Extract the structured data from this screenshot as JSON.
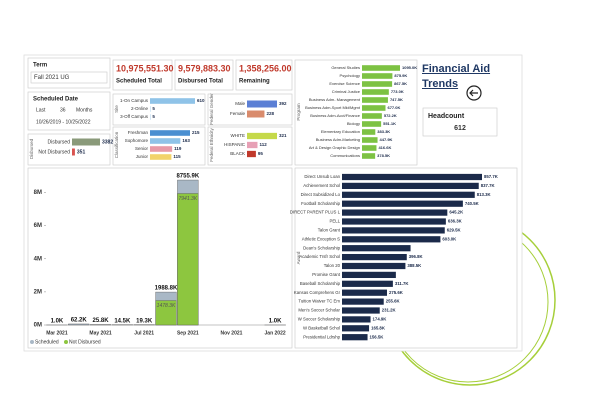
{
  "term": {
    "label": "Term",
    "value": "Fall 2021 UG"
  },
  "kpis": [
    {
      "value": "10,975,551.30",
      "label": "Scheduled Total"
    },
    {
      "value": "9,579,883.30",
      "label": "Disbursed Total"
    },
    {
      "value": "1,358,256.00",
      "label": "Remaining"
    }
  ],
  "scheduled_date": {
    "label": "Scheduled Date",
    "mode": "Last",
    "count": "36",
    "unit": "Months",
    "range": "10/26/2019 - 10/25/2022"
  },
  "trends": {
    "title": "Financial Aid Trends",
    "headcount_label": "Headcount",
    "headcount": "612"
  },
  "chart_data": [
    {
      "type": "hbar",
      "axis_label": "Disbursed",
      "categories": [
        "Disbursed",
        "Not Disbursed"
      ],
      "values": [
        3382,
        351
      ],
      "colors": [
        "#8a9a7a",
        "#d9534f"
      ]
    },
    {
      "type": "hbar",
      "axis_label": "Site",
      "categories": [
        "1-On Campus",
        "2-Online",
        "3-Off Campus"
      ],
      "values": [
        610,
        5,
        5
      ],
      "colors": [
        "#8fc3e8",
        "#8fc3e8",
        "#8fc3e8"
      ]
    },
    {
      "type": "hbar",
      "axis_label": "Classification",
      "categories": [
        "Freshman",
        "Sophomore",
        "Senior",
        "Junior"
      ],
      "values": [
        215,
        163,
        119,
        115
      ],
      "colors": [
        "#4a8fd1",
        "#8fc3e8",
        "#e79aa8",
        "#f2d36b"
      ]
    },
    {
      "type": "hbar",
      "axis_label": "Federal Gender",
      "categories": [
        "Male",
        "Female"
      ],
      "values": [
        392,
        228
      ],
      "colors": [
        "#5b7fd5",
        "#d98b6c"
      ]
    },
    {
      "type": "hbar",
      "axis_label": "Federal Ethnicity",
      "categories": [
        "WHITE",
        "HISPANIC",
        "BLACK"
      ],
      "values": [
        321,
        112,
        95
      ],
      "colors": [
        "#c5d94a",
        "#e7a0b5",
        "#c0392b"
      ]
    },
    {
      "type": "hbar",
      "axis_label": "Program",
      "categories": [
        "General Studies",
        "Psychology",
        "Exercise Science",
        "Criminal Justice",
        "Business Adm- Management",
        "Business Adm-Sport Mkt/Mgmt",
        "Business Adm-Acct/Finance",
        "Biology",
        "Elementary Education",
        "Business Adm-Marketing",
        "Art & Design Graphic Design",
        "Communications"
      ],
      "values": [
        1095.0,
        875.9,
        867.5,
        773.0,
        747.5,
        677.0,
        572.2,
        551.1,
        383.3,
        447.9,
        416.6,
        378.5
      ],
      "value_labels": [
        "1095.0K",
        "875.9K",
        "867.5K",
        "773.0K",
        "747.5K",
        "677.0K",
        "572.2K",
        "551.1K",
        "383.3K",
        "447.9K",
        "416.6K",
        "378.5K"
      ],
      "color": "#7dc243"
    },
    {
      "type": "bar",
      "categories": [
        "Mar 2021",
        null,
        "May 2021",
        null,
        "Jul 2021",
        null,
        "Sep 2021",
        null,
        "Nov 2021",
        null,
        "Jan 2022"
      ],
      "ylim": [
        0,
        9000000
      ],
      "yticks": [
        {
          "value": 0,
          "label": "0M"
        },
        {
          "value": 2000000,
          "label": "2M"
        },
        {
          "value": 4000000,
          "label": "4M"
        },
        {
          "value": 6000000,
          "label": "6M"
        },
        {
          "value": 8000000,
          "label": "8M"
        }
      ],
      "series": [
        {
          "name": "Scheduled",
          "color": "#a9b8c6",
          "values": [
            1000,
            62200,
            25800,
            14500,
            19300,
            1988800,
            8755900,
            null,
            null,
            null,
            1000
          ],
          "value_labels": [
            "1.0K",
            "62.2K",
            "25.8K",
            "14.5K",
            "19.3K",
            "1988.8K",
            "8755.9K",
            null,
            null,
            null,
            "1.0K"
          ]
        },
        {
          "name": "Not Disbursed",
          "color": "#8dc63f",
          "values": [
            null,
            null,
            null,
            null,
            null,
            1478300,
            7941300,
            null,
            null,
            null,
            null
          ],
          "value_labels": [
            null,
            null,
            null,
            null,
            null,
            "1478.3K",
            "7941.3K",
            null,
            null,
            null,
            null
          ]
        }
      ]
    },
    {
      "type": "hbar",
      "axis_label": "Award",
      "categories": [
        "Direct Unsub Loan",
        "Achievement Schol",
        "Direct Subsidized Lo",
        "Football Scholarship",
        "DIRECT PARENT PLUS L",
        "PELL",
        "Talon Grant",
        "Athletic Exception S",
        "Dean's Scholarship",
        "Academic Trsfr Schol",
        "Talon 20",
        "Promise Grant",
        "Baseball Scholarship",
        "Kansas Comprehens Gr",
        "Tuition Waiver TC Em",
        "Men's Soccer Scholar",
        "W Soccer Scholarship",
        "W Basketball Schol",
        "Presidential Ldrshp"
      ],
      "values": [
        857.7,
        837.7,
        813.3,
        740.5,
        645.2,
        636.3,
        629.5,
        603.0,
        420.0,
        396.8,
        388.5,
        330.0,
        311.7,
        275.6,
        255.6,
        231.2,
        174.9,
        165.8,
        156.5
      ],
      "value_labels": [
        "857.7K",
        "837.7K",
        "813.3K",
        "740.5K",
        "645.2K",
        "636.3K",
        "629.5K",
        "603.0K",
        null,
        "396.8K",
        "388.5K",
        null,
        "311.7K",
        "275.6K",
        "255.6K",
        "231.2K",
        "174.9K",
        "165.8K",
        "156.5K"
      ],
      "color": "#1b2a4a"
    }
  ]
}
